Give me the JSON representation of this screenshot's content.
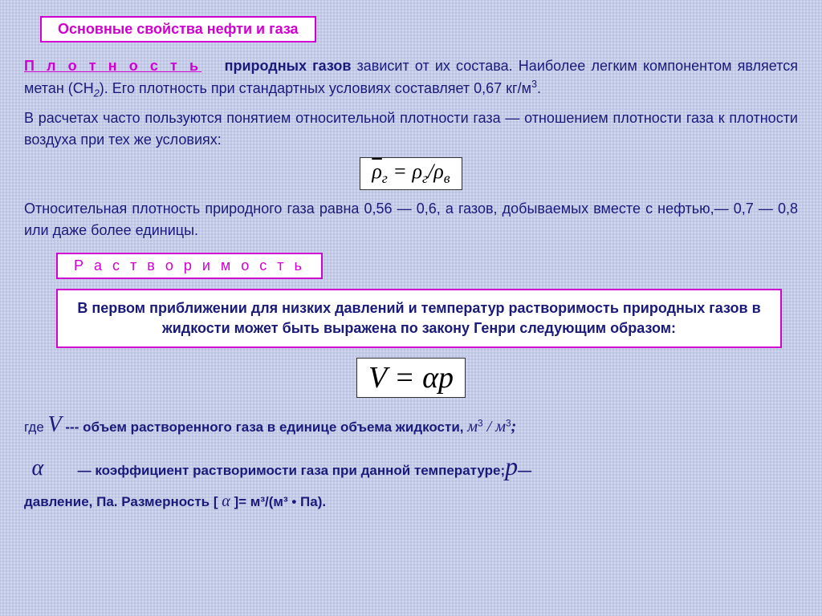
{
  "title": "Основные свойства нефти и газа",
  "keyword_density": "П л о т н о с т ь",
  "para1_part1": "природных газов",
  "para1_part2": " зависит от их состава. Наиболее легким компонентом является метан (CH",
  "para1_sub": "2",
  "para1_part3": "). Его плотность при стандартных условиях составляет 0,67 кг/м",
  "para1_sup": "3",
  "para1_part4": ".",
  "para2": "В расчетах часто пользуются понятием относительной плотности газа — отношением плотности газа  к плотности воздуха  при тех же условиях:",
  "formula1_lhs_bar": "ρ",
  "formula1_lhs_sub": "г",
  "formula1_eq": " = ",
  "formula1_rhs1": "ρ",
  "formula1_rhs1_sub": "г",
  "formula1_slash": "/",
  "formula1_rhs2": "ρ",
  "formula1_rhs2_sub": "в",
  "para3": "Относительная плотность природного газа равна 0,56 — 0,6, а газов, добываемых вместе с нефтью,— 0,7 — 0,8 или даже более единицы.",
  "keyword_solubility": "Р а с т в о р и м о с т ь",
  "highlight": "В первом приближении для низких давлений и температур растворимость природных газов в жидкости может быть выражена по закону Генри следующим образом:",
  "formula2": "V = αp",
  "def_where": "где ",
  "def_V": "V",
  "def_V_text": "  ---     объем растворенного газа в единице объема жидкости, ",
  "def_V_unit1": "м",
  "def_V_unit_sup": "3",
  "def_V_slash": " / ",
  "def_V_unit2": "м",
  "def_V_semicolon": ";",
  "def_alpha": "α",
  "def_alpha_text": " — коэффициент растворимости газа при данной температуре;",
  "def_p": "p",
  "def_p_dash": "—",
  "def_pressure": "давление, Па. Размерность [ ",
  "def_alpha2": "α",
  "def_pressure_end": " ]= м³/(м³ • Па).",
  "colors": {
    "background": "#c5cce8",
    "text": "#1a1a7a",
    "accent": "#d000d0",
    "box_bg": "#ffffff"
  },
  "typography": {
    "body_fontsize": 18,
    "formula_fontsize": 26,
    "formula_large_fontsize": 38,
    "keyword_letterspacing": 4
  }
}
